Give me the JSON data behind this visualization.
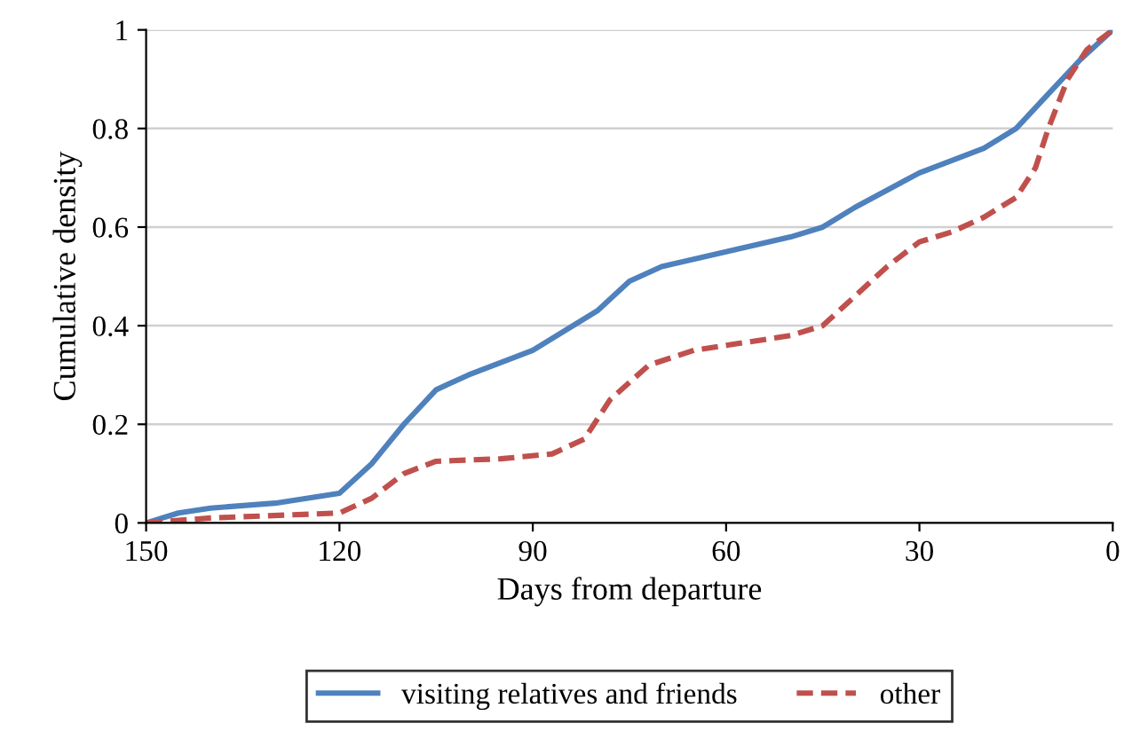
{
  "chart_data": {
    "type": "line",
    "xlabel": "Days from departure",
    "ylabel": "Cumulative density",
    "xlim": [
      150,
      0
    ],
    "xticks": [
      150,
      120,
      90,
      60,
      30,
      0
    ],
    "ylim": [
      0,
      1
    ],
    "yticks": [
      0,
      0.2,
      0.4,
      0.6,
      0.8,
      1
    ],
    "grid": "y",
    "legend": "bottom",
    "marker": "none",
    "series": [
      {
        "name": "visiting relatives and friends",
        "color": "#4f81bd",
        "line_style": "solid",
        "x": [
          150,
          145,
          140,
          130,
          120,
          115,
          110,
          105,
          100,
          90,
          80,
          75,
          70,
          60,
          50,
          45,
          40,
          30,
          20,
          15,
          10,
          5,
          0
        ],
        "values": [
          0.0,
          0.02,
          0.03,
          0.04,
          0.06,
          0.12,
          0.2,
          0.27,
          0.3,
          0.35,
          0.43,
          0.49,
          0.52,
          0.55,
          0.58,
          0.6,
          0.64,
          0.71,
          0.76,
          0.8,
          0.87,
          0.94,
          1.0
        ]
      },
      {
        "name": "other",
        "color": "#c0504d",
        "line_style": "dashed",
        "x": [
          150,
          140,
          120,
          115,
          110,
          105,
          95,
          87,
          82,
          78,
          72,
          65,
          60,
          50,
          45,
          40,
          35,
          30,
          25,
          20,
          15,
          12,
          10,
          7,
          4,
          0
        ],
        "values": [
          0.0,
          0.01,
          0.02,
          0.05,
          0.1,
          0.125,
          0.13,
          0.14,
          0.17,
          0.25,
          0.32,
          0.35,
          0.36,
          0.38,
          0.4,
          0.46,
          0.52,
          0.57,
          0.59,
          0.62,
          0.66,
          0.72,
          0.8,
          0.9,
          0.96,
          1.0
        ]
      }
    ]
  }
}
